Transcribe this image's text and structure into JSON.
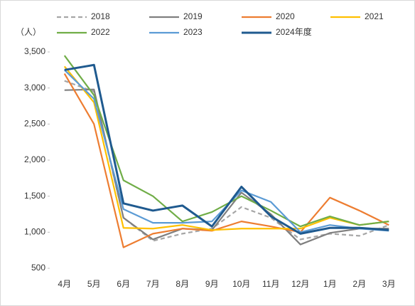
{
  "chart_data": {
    "type": "line",
    "y_label": "（人）",
    "categories": [
      "4月",
      "5月",
      "6月",
      "7月",
      "8月",
      "9月",
      "10月",
      "11月",
      "12月",
      "1月",
      "2月",
      "3月"
    ],
    "series": [
      {
        "name": "2018",
        "color": "#a6a6a6",
        "style": "dashed",
        "values": [
          3100,
          2950,
          1200,
          880,
          980,
          1050,
          1350,
          1200,
          900,
          980,
          950,
          1100
        ]
      },
      {
        "name": "2019",
        "color": "#7f7f7f",
        "style": "solid",
        "values": [
          2970,
          2980,
          1200,
          900,
          1050,
          1030,
          1550,
          1250,
          830,
          990,
          1050,
          1050
        ]
      },
      {
        "name": "2020",
        "color": "#ed7d31",
        "style": "solid",
        "values": [
          3200,
          2500,
          790,
          980,
          1050,
          1020,
          1150,
          1080,
          1000,
          1480,
          1300,
          1100
        ]
      },
      {
        "name": "2021",
        "color": "#ffc000",
        "style": "solid",
        "values": [
          3300,
          2800,
          1060,
          1050,
          1100,
          1030,
          1050,
          1050,
          1050,
          1200,
          1100,
          1150
        ]
      },
      {
        "name": "2022",
        "color": "#70ad47",
        "style": "solid",
        "values": [
          3450,
          2900,
          1720,
          1500,
          1150,
          1280,
          1500,
          1300,
          1080,
          1220,
          1100,
          1150
        ]
      },
      {
        "name": "2023",
        "color": "#5b9bd5",
        "style": "solid",
        "values": [
          3250,
          2850,
          1320,
          1130,
          1130,
          1150,
          1580,
          1420,
          1000,
          1100,
          1050,
          1020
        ]
      },
      {
        "name": "2024年度",
        "color": "#1f5a8f",
        "style": "solid",
        "values": [
          3250,
          3320,
          1400,
          1300,
          1370,
          1080,
          1630,
          1220,
          980,
          1060,
          1060,
          1030
        ]
      }
    ],
    "ylim": [
      500,
      3500
    ],
    "yticks": [
      500,
      {
        "value": 1000,
        "label": "1,000"
      },
      {
        "value": 1500,
        "label": "1,500"
      },
      {
        "value": 2000,
        "label": "2,000"
      },
      {
        "value": 2500,
        "label": "2,500"
      },
      {
        "value": 3000,
        "label": "3,000"
      },
      {
        "value": 3500,
        "label": "3,500"
      }
    ],
    "grid": false,
    "legend": "top"
  }
}
